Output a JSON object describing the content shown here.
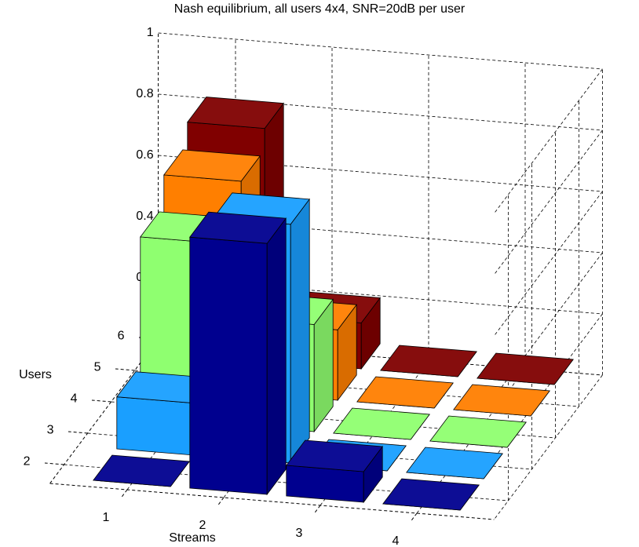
{
  "chart_data": {
    "type": "bar3d",
    "title": "Nash equilibrium, all users 4x4, SNR=20dB per user",
    "xlabel": "Streams",
    "ylabel": "Users",
    "categories": [
      "1",
      "2",
      "3",
      "4"
    ],
    "series": [
      {
        "name": "2",
        "color": "#00008f",
        "values": [
          0,
          0.82,
          0.1,
          0
        ]
      },
      {
        "name": "3",
        "color": "#1a9fff",
        "values": [
          0.17,
          0.78,
          0,
          0
        ]
      },
      {
        "name": "4",
        "color": "#8fff70",
        "values": [
          0.59,
          0.35,
          0,
          0
        ]
      },
      {
        "name": "5",
        "color": "#ff7f00",
        "values": [
          0.69,
          0.23,
          0,
          0
        ]
      },
      {
        "name": "6",
        "color": "#800000",
        "values": [
          0.76,
          0.15,
          0,
          0
        ]
      }
    ],
    "zlim": [
      0,
      1
    ],
    "zticks": [
      0,
      0.2,
      0.4,
      0.6,
      0.8,
      1
    ],
    "grid": true
  }
}
